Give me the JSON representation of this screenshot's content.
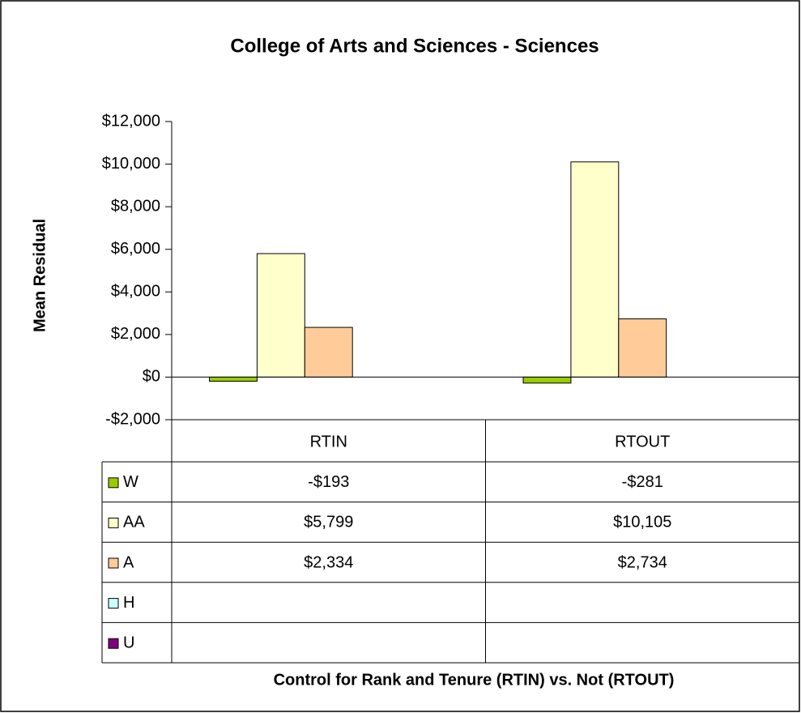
{
  "chart_data": {
    "type": "bar",
    "title": "College of Arts and Sciences - Sciences",
    "y_label": "Mean Residual",
    "x_label": "Control for Rank and Tenure (RTIN) vs. Not (RTOUT)",
    "categories": [
      "RTIN",
      "RTOUT"
    ],
    "series": [
      {
        "name": "W",
        "color": "#99cc00",
        "values": [
          -193,
          -281
        ],
        "value_labels": [
          "-$193",
          "-$281"
        ]
      },
      {
        "name": "AA",
        "color": "#ffffcc",
        "values": [
          5799,
          10105
        ],
        "value_labels": [
          "$5,799",
          "$10,105"
        ]
      },
      {
        "name": "A",
        "color": "#ffcc99",
        "values": [
          2334,
          2734
        ],
        "value_labels": [
          "$2,334",
          "$2,734"
        ]
      },
      {
        "name": "H",
        "color": "#ccffff",
        "values": [
          null,
          null
        ],
        "value_labels": [
          null,
          null
        ]
      },
      {
        "name": "U",
        "color": "#800080",
        "values": [
          null,
          null
        ],
        "value_labels": [
          null,
          null
        ]
      }
    ],
    "ylim": [
      -2000,
      12000
    ],
    "yticks": [
      {
        "value": -2000,
        "label": "-$2,000"
      },
      {
        "value": 0,
        "label": "$0"
      },
      {
        "value": 2000,
        "label": "$2,000"
      },
      {
        "value": 4000,
        "label": "$4,000"
      },
      {
        "value": 6000,
        "label": "$6,000"
      },
      {
        "value": 8000,
        "label": "$8,000"
      },
      {
        "value": 10000,
        "label": "$10,000"
      },
      {
        "value": 12000,
        "label": "$12,000"
      }
    ],
    "data_table": true
  }
}
